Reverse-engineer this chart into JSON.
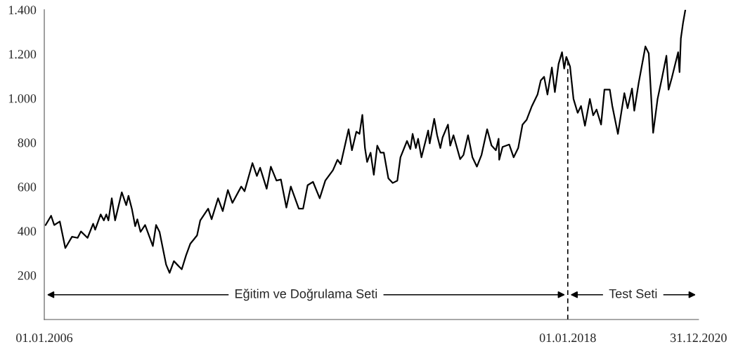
{
  "chart_data": {
    "type": "line",
    "x": [
      "2006-01-12",
      "2006-02-27",
      "2006-03-25",
      "2006-05-11",
      "2006-06-26",
      "2006-08-21",
      "2006-10-07",
      "2006-11-04",
      "2006-12-29",
      "2007-02-14",
      "2007-03-03",
      "2007-04-18",
      "2007-05-15",
      "2007-06-04",
      "2007-06-22",
      "2007-07-20",
      "2007-08-17",
      "2007-10-12",
      "2007-11-18",
      "2007-12-07",
      "2008-01-04",
      "2008-02-01",
      "2008-02-19",
      "2008-03-17",
      "2008-04-24",
      "2008-06-28",
      "2008-07-25",
      "2008-08-23",
      "2008-10-17",
      "2008-11-15",
      "2008-12-21",
      "2009-01-18",
      "2009-02-25",
      "2009-04-02",
      "2009-05-08",
      "2009-07-03",
      "2009-07-30",
      "2009-10-04",
      "2009-11-02",
      "2009-12-26",
      "2010-02-03",
      "2010-03-18",
      "2010-04-25",
      "2010-07-08",
      "2010-08-05",
      "2010-10-10",
      "2010-11-16",
      "2010-12-13",
      "2011-02-06",
      "2011-03-13",
      "2011-04-29",
      "2011-06-05",
      "2011-07-21",
      "2011-08-27",
      "2011-11-02",
      "2011-12-08",
      "2012-01-15",
      "2012-02-29",
      "2012-04-25",
      "2012-06-11",
      "2012-08-14",
      "2012-09-21",
      "2012-10-18",
      "2012-12-23",
      "2013-01-20",
      "2013-02-26",
      "2013-03-24",
      "2013-04-17",
      "2013-05-09",
      "2013-05-27",
      "2013-06-25",
      "2013-07-22",
      "2013-08-20",
      "2013-09-17",
      "2013-10-14",
      "2013-11-21",
      "2013-12-27",
      "2014-02-04",
      "2014-03-02",
      "2014-04-26",
      "2014-05-24",
      "2014-06-12",
      "2014-07-09",
      "2014-07-28",
      "2014-08-25",
      "2014-10-20",
      "2014-11-02",
      "2014-12-10",
      "2015-01-03",
      "2015-01-30",
      "2015-02-18",
      "2015-04-04",
      "2015-04-23",
      "2015-05-20",
      "2015-07-15",
      "2015-08-12",
      "2015-09-19",
      "2015-10-26",
      "2015-12-02",
      "2016-01-10",
      "2016-02-26",
      "2016-04-03",
      "2016-05-09",
      "2016-06-01",
      "2016-06-06",
      "2016-07-04",
      "2016-08-29",
      "2016-10-05",
      "2016-11-12",
      "2016-12-18",
      "2017-01-21",
      "2017-03-07",
      "2017-04-23",
      "2017-05-20",
      "2017-06-17",
      "2017-07-15",
      "2017-08-21",
      "2017-09-15",
      "2017-10-16",
      "2017-11-14",
      "2017-12-02",
      "2017-12-20",
      "2018-01-20",
      "2018-02-18",
      "2018-03-25",
      "2018-04-22",
      "2018-05-25",
      "2018-07-05",
      "2018-08-02",
      "2018-08-30",
      "2018-10-07",
      "2018-11-04",
      "2018-12-19",
      "2019-01-09",
      "2019-02-25",
      "2019-04-20",
      "2019-05-17",
      "2019-06-23",
      "2019-07-12",
      "2019-08-18",
      "2019-10-13",
      "2019-11-10",
      "2019-12-17",
      "2020-01-23",
      "2020-02-29",
      "2020-04-06",
      "2020-04-24",
      "2020-05-21",
      "2020-07-13",
      "2020-07-25",
      "2020-08-05",
      "2020-08-23",
      "2020-09-11"
    ],
    "series": [
      {
        "color": "#000000",
        "values": [
          427,
          469,
          427,
          443,
          323,
          374,
          369,
          398,
          369,
          433,
          406,
          475,
          448,
          475,
          448,
          548,
          448,
          575,
          517,
          559,
          501,
          422,
          453,
          396,
          427,
          332,
          427,
          396,
          248,
          211,
          264,
          248,
          227,
          290,
          343,
          380,
          448,
          501,
          453,
          548,
          490,
          585,
          527,
          601,
          580,
          707,
          649,
          686,
          591,
          691,
          628,
          633,
          506,
          601,
          501,
          501,
          607,
          622,
          548,
          628,
          675,
          722,
          702,
          860,
          765,
          849,
          839,
          925,
          775,
          712,
          754,
          654,
          786,
          754,
          754,
          638,
          617,
          628,
          733,
          807,
          770,
          839,
          775,
          817,
          733,
          854,
          796,
          907,
          833,
          775,
          823,
          881,
          786,
          833,
          725,
          744,
          833,
          733,
          691,
          744,
          860,
          786,
          765,
          817,
          722,
          780,
          791,
          733,
          775,
          881,
          902,
          965,
          1017,
          1081,
          1097,
          1017,
          1139,
          1028,
          1155,
          1208,
          1134,
          1187,
          1144,
          997,
          934,
          965,
          876,
          997,
          923,
          949,
          881,
          1039,
          1039,
          965,
          839,
          1023,
          955,
          1044,
          944,
          1070,
          1234,
          1203,
          844,
          997,
          1092,
          1192,
          1039,
          1092,
          1208,
          1118,
          1271,
          1340,
          1398
        ]
      }
    ],
    "xlim": [
      "2006-01-01",
      "2020-12-31"
    ],
    "xticks": [
      {
        "value": "2006-01-01",
        "label": "01.01.2006"
      },
      {
        "value": "2018-01-01",
        "label": "01.01.2018"
      },
      {
        "value": "2020-12-31",
        "label": "31.12.2020"
      }
    ],
    "ylim": [
      0,
      1400
    ],
    "yticks": [
      200,
      400,
      600,
      800,
      {
        "value": 1000,
        "label": "1.000"
      },
      {
        "value": 1200,
        "label": "1.200"
      },
      {
        "value": 1400,
        "label": "1.400"
      }
    ],
    "ref_lines": [
      {
        "axis": "x",
        "value": "2018-01-01",
        "line_style": "dashed",
        "color": "#000000"
      }
    ],
    "annotations": [
      "Eğitim ve Doğrulama Seti",
      "Test Seti"
    ]
  }
}
